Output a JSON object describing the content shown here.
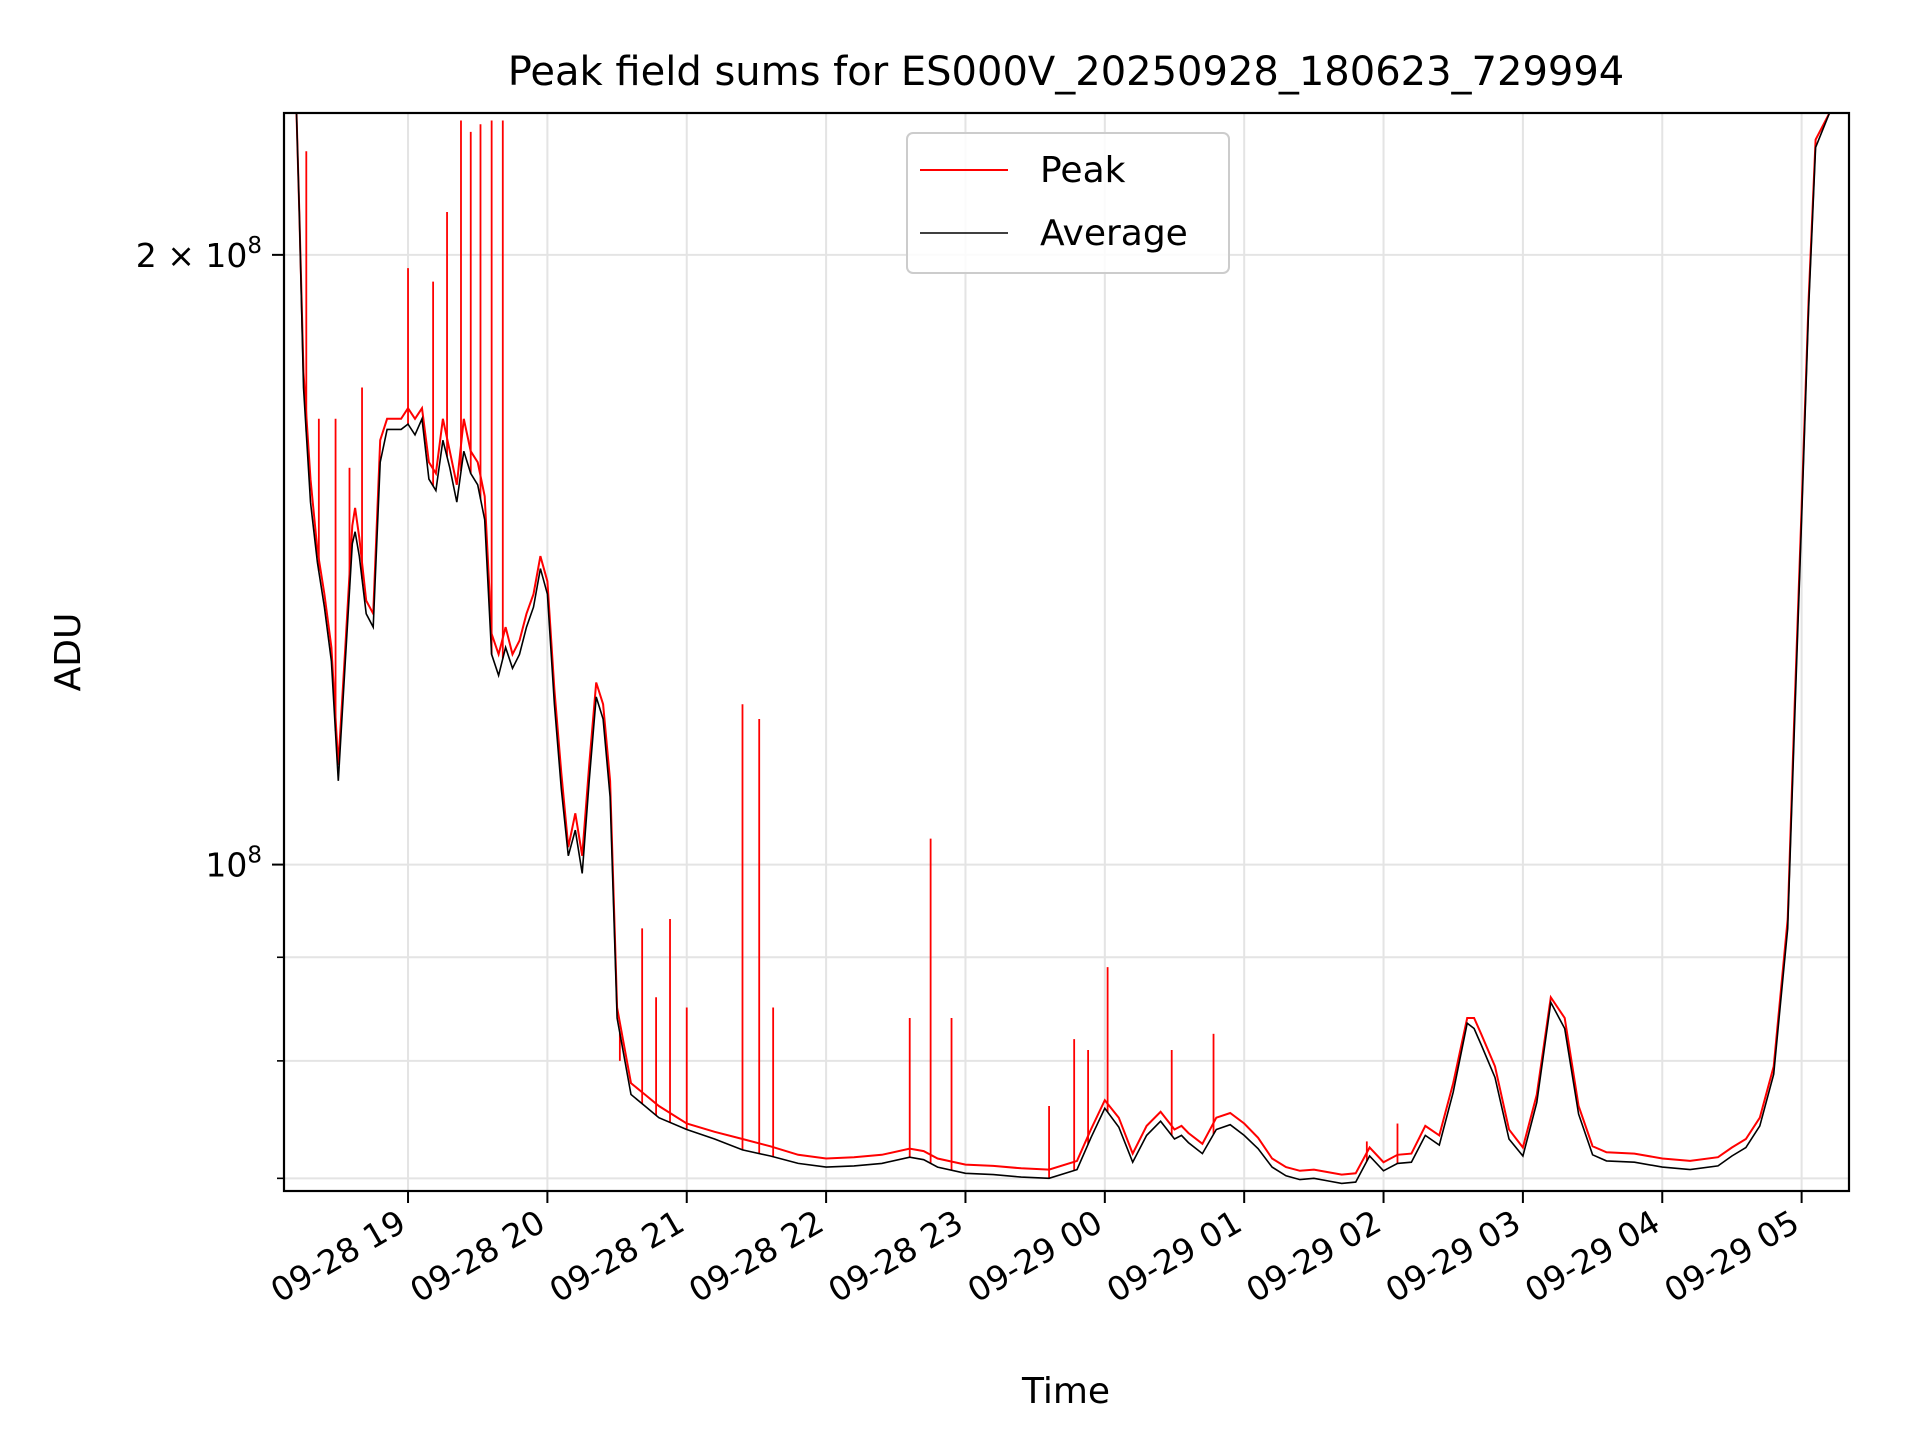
{
  "chart_data": {
    "type": "line",
    "title": "Peak field sums for ES000V_20250928_180623_729994",
    "xlabel": "Time",
    "ylabel": "ADU",
    "yscale": "log",
    "grid": true,
    "legend_position": "upper-center",
    "xlim": [
      18.11,
      29.34
    ],
    "ylim": [
      69000000,
      235000000
    ],
    "x_ticks": [
      {
        "label": "09-28 19",
        "x": 19
      },
      {
        "label": "09-28 20",
        "x": 20
      },
      {
        "label": "09-28 21",
        "x": 21
      },
      {
        "label": "09-28 22",
        "x": 22
      },
      {
        "label": "09-28 23",
        "x": 23
      },
      {
        "label": "09-29 00",
        "x": 24
      },
      {
        "label": "09-29 01",
        "x": 25
      },
      {
        "label": "09-29 02",
        "x": 26
      },
      {
        "label": "09-29 03",
        "x": 27
      },
      {
        "label": "09-29 04",
        "x": 28
      },
      {
        "label": "09-29 05",
        "x": 29
      }
    ],
    "y_ticks": [
      {
        "mantissa": "2",
        "exponent": "8",
        "value": 200000000
      },
      {
        "mantissa": "",
        "exponent": "8",
        "value": 100000000
      }
    ],
    "y_minor_ticks": [
      70000000,
      80000000,
      90000000
    ],
    "series": [
      {
        "name": "Peak",
        "color": "#ff0000",
        "x": [
          18.12,
          18.2,
          18.22,
          18.25,
          18.3,
          18.35,
          18.4,
          18.45,
          18.5,
          18.55,
          18.6,
          18.62,
          18.65,
          18.7,
          18.75,
          18.8,
          18.85,
          18.9,
          18.95,
          19.0,
          19.05,
          19.1,
          19.15,
          19.2,
          19.25,
          19.3,
          19.35,
          19.4,
          19.45,
          19.5,
          19.55,
          19.6,
          19.65,
          19.7,
          19.75,
          19.8,
          19.85,
          19.9,
          19.95,
          20.0,
          20.05,
          20.1,
          20.15,
          20.2,
          20.25,
          20.3,
          20.35,
          20.4,
          20.45,
          20.5,
          20.6,
          20.7,
          20.8,
          21.0,
          21.2,
          21.4,
          21.6,
          21.8,
          22.0,
          22.2,
          22.4,
          22.6,
          22.7,
          22.8,
          23.0,
          23.2,
          23.4,
          23.6,
          23.8,
          23.9,
          24.0,
          24.1,
          24.2,
          24.3,
          24.4,
          24.5,
          24.55,
          24.6,
          24.7,
          24.8,
          24.9,
          25.0,
          25.1,
          25.2,
          25.3,
          25.4,
          25.5,
          25.6,
          25.7,
          25.8,
          25.9,
          26.0,
          26.1,
          26.2,
          26.3,
          26.4,
          26.5,
          26.6,
          26.65,
          26.7,
          26.8,
          26.9,
          27.0,
          27.1,
          27.2,
          27.3,
          27.4,
          27.5,
          27.6,
          27.8,
          28.0,
          28.2,
          28.4,
          28.5,
          28.6,
          28.7,
          28.8,
          28.9,
          28.95,
          29.0,
          29.05,
          29.1,
          29.2,
          29.3
        ],
        "y": [
          235000000,
          235000000,
          210000000,
          175000000,
          155000000,
          143000000,
          136000000,
          128000000,
          112000000,
          128000000,
          147000000,
          150000000,
          145000000,
          135000000,
          133000000,
          162000000,
          166000000,
          166000000,
          166000000,
          168000000,
          166000000,
          168000000,
          158000000,
          156000000,
          166000000,
          160000000,
          154000000,
          166000000,
          160000000,
          158000000,
          152000000,
          130000000,
          127000000,
          131000000,
          127000000,
          129000000,
          133000000,
          136000000,
          142000000,
          138000000,
          122000000,
          111000000,
          102000000,
          106000000,
          101000000,
          112000000,
          123000000,
          120000000,
          110000000,
          85000000,
          78000000,
          77000000,
          76000000,
          74500000,
          73800000,
          73200000,
          72600000,
          71900000,
          71600000,
          71700000,
          71900000,
          72400000,
          72200000,
          71600000,
          71100000,
          71000000,
          70800000,
          70700000,
          71400000,
          74000000,
          76500000,
          75000000,
          72000000,
          74300000,
          75500000,
          74000000,
          74300000,
          73700000,
          72800000,
          75000000,
          75400000,
          74500000,
          73300000,
          71600000,
          70900000,
          70600000,
          70700000,
          70500000,
          70300000,
          70400000,
          72500000,
          71300000,
          71900000,
          72000000,
          74300000,
          73500000,
          78000000,
          84000000,
          84000000,
          82500000,
          79500000,
          74000000,
          72500000,
          77000000,
          86000000,
          84000000,
          76000000,
          72600000,
          72100000,
          72000000,
          71600000,
          71400000,
          71700000,
          72500000,
          73200000,
          75000000,
          79500000,
          94000000,
          120000000,
          150000000,
          190000000,
          228000000,
          235000000,
          235000000
        ]
      },
      {
        "name": "Average",
        "color": "#000000",
        "x": [
          18.12,
          18.2,
          18.22,
          18.25,
          18.3,
          18.35,
          18.4,
          18.45,
          18.5,
          18.55,
          18.6,
          18.62,
          18.65,
          18.7,
          18.75,
          18.8,
          18.85,
          18.9,
          18.95,
          19.0,
          19.05,
          19.1,
          19.15,
          19.2,
          19.25,
          19.3,
          19.35,
          19.4,
          19.45,
          19.5,
          19.55,
          19.6,
          19.65,
          19.7,
          19.75,
          19.8,
          19.85,
          19.9,
          19.95,
          20.0,
          20.05,
          20.1,
          20.15,
          20.2,
          20.25,
          20.3,
          20.35,
          20.4,
          20.45,
          20.5,
          20.6,
          20.7,
          20.8,
          21.0,
          21.2,
          21.4,
          21.6,
          21.8,
          22.0,
          22.2,
          22.4,
          22.6,
          22.7,
          22.8,
          23.0,
          23.2,
          23.4,
          23.6,
          23.8,
          23.9,
          24.0,
          24.1,
          24.2,
          24.3,
          24.4,
          24.5,
          24.55,
          24.6,
          24.7,
          24.8,
          24.9,
          25.0,
          25.1,
          25.2,
          25.3,
          25.4,
          25.5,
          25.6,
          25.7,
          25.8,
          25.9,
          26.0,
          26.1,
          26.2,
          26.3,
          26.4,
          26.5,
          26.6,
          26.65,
          26.7,
          26.8,
          26.9,
          27.0,
          27.1,
          27.2,
          27.3,
          27.4,
          27.5,
          27.6,
          27.8,
          28.0,
          28.2,
          28.4,
          28.5,
          28.6,
          28.7,
          28.8,
          28.9,
          28.95,
          29.0,
          29.05,
          29.1,
          29.2,
          29.3
        ],
        "y": [
          235000000,
          235000000,
          210000000,
          172000000,
          151000000,
          141000000,
          134000000,
          126000000,
          110000000,
          126000000,
          144000000,
          146000000,
          142000000,
          133000000,
          131000000,
          158000000,
          164000000,
          164000000,
          164000000,
          165000000,
          163000000,
          166000000,
          155000000,
          153000000,
          162000000,
          157000000,
          151000000,
          160000000,
          156000000,
          154000000,
          148000000,
          127000000,
          124000000,
          128000000,
          125000000,
          127000000,
          131000000,
          134000000,
          140000000,
          136000000,
          120000000,
          109000000,
          101000000,
          104000000,
          99000000,
          110000000,
          121000000,
          118000000,
          108000000,
          84000000,
          77000000,
          76000000,
          75000000,
          74000000,
          73200000,
          72300000,
          71800000,
          71200000,
          70900000,
          71000000,
          71200000,
          71700000,
          71500000,
          70900000,
          70400000,
          70300000,
          70100000,
          70000000,
          70700000,
          73300000,
          75800000,
          74200000,
          71300000,
          73500000,
          74700000,
          73200000,
          73500000,
          72900000,
          72000000,
          74000000,
          74400000,
          73500000,
          72400000,
          70900000,
          70200000,
          69900000,
          70000000,
          69800000,
          69600000,
          69700000,
          71800000,
          70600000,
          71200000,
          71300000,
          73500000,
          72700000,
          77200000,
          83500000,
          83000000,
          81500000,
          78500000,
          73200000,
          71800000,
          76300000,
          85500000,
          83000000,
          75300000,
          71900000,
          71400000,
          71300000,
          70900000,
          70700000,
          71000000,
          71800000,
          72500000,
          74300000,
          78800000,
          93000000,
          118000000,
          148000000,
          188000000,
          226000000,
          235000000,
          235000000
        ]
      }
    ],
    "spikes": [
      {
        "x": 18.27,
        "y": 225000000
      },
      {
        "x": 18.36,
        "y": 166000000
      },
      {
        "x": 18.48,
        "y": 166000000
      },
      {
        "x": 18.58,
        "y": 157000000
      },
      {
        "x": 18.67,
        "y": 172000000
      },
      {
        "x": 19.0,
        "y": 197000000
      },
      {
        "x": 19.18,
        "y": 194000000
      },
      {
        "x": 19.28,
        "y": 210000000
      },
      {
        "x": 19.38,
        "y": 233000000
      },
      {
        "x": 19.45,
        "y": 230000000
      },
      {
        "x": 19.52,
        "y": 232000000
      },
      {
        "x": 19.6,
        "y": 233000000
      },
      {
        "x": 19.68,
        "y": 233000000
      },
      {
        "x": 20.52,
        "y": 80000000
      },
      {
        "x": 20.68,
        "y": 93000000
      },
      {
        "x": 20.78,
        "y": 86000000
      },
      {
        "x": 20.88,
        "y": 94000000
      },
      {
        "x": 21.0,
        "y": 85000000
      },
      {
        "x": 21.4,
        "y": 120000000
      },
      {
        "x": 21.52,
        "y": 118000000
      },
      {
        "x": 21.62,
        "y": 85000000
      },
      {
        "x": 22.6,
        "y": 84000000
      },
      {
        "x": 22.75,
        "y": 103000000
      },
      {
        "x": 22.9,
        "y": 84000000
      },
      {
        "x": 23.6,
        "y": 76000000
      },
      {
        "x": 23.78,
        "y": 82000000
      },
      {
        "x": 23.88,
        "y": 81000000
      },
      {
        "x": 24.02,
        "y": 89000000
      },
      {
        "x": 24.48,
        "y": 81000000
      },
      {
        "x": 24.78,
        "y": 82500000
      },
      {
        "x": 25.88,
        "y": 73000000
      },
      {
        "x": 26.1,
        "y": 74500000
      }
    ]
  }
}
